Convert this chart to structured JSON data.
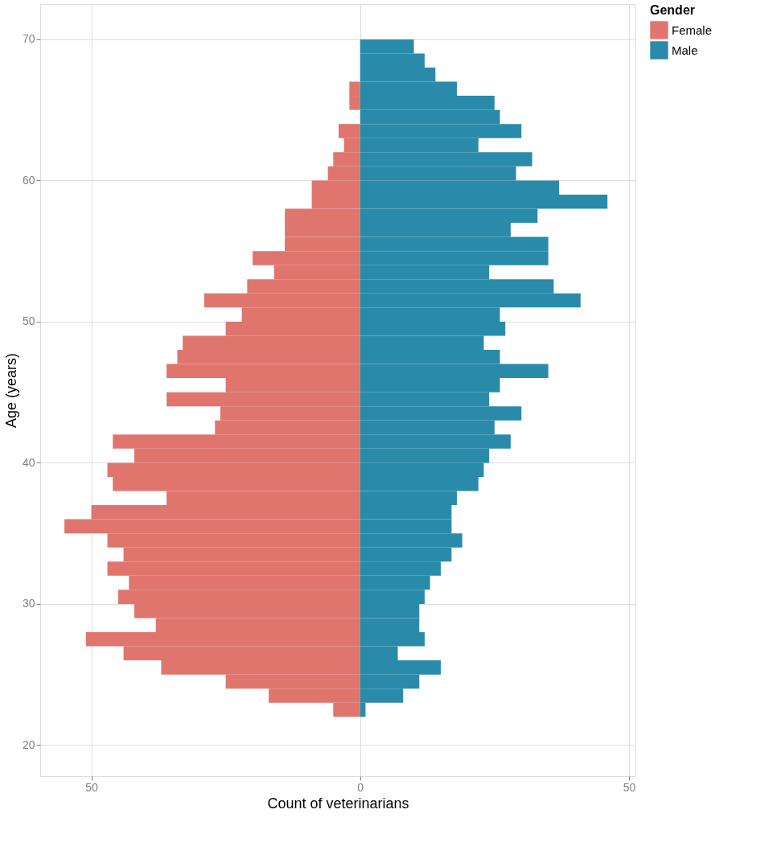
{
  "chart_data": {
    "type": "bar",
    "orientation": "horizontal",
    "stacked": true,
    "xlabel": "Count of veterinarians",
    "ylabel": "Age (years)",
    "legend_title": "Gender",
    "legend": "right",
    "grid": true,
    "x": [
      22.5,
      23.5,
      24.5,
      25.5,
      26.5,
      27.5,
      28.5,
      29.5,
      30.5,
      31.5,
      32.5,
      33.5,
      34.5,
      35.5,
      36.5,
      37.5,
      38.5,
      39.5,
      40.5,
      41.5,
      42.5,
      43.5,
      44.5,
      45.5,
      46.5,
      47.5,
      48.5,
      49.5,
      50.5,
      51.5,
      52.5,
      53.5,
      54.5,
      55.5,
      56.5,
      57.5,
      58.5,
      59.5,
      60.5,
      61.5,
      62.5,
      63.5,
      64.5,
      65.5,
      66.5,
      67.5,
      68.5,
      69.5
    ],
    "series": [
      {
        "name": "Female",
        "color": "#e0756d",
        "values": [
          -5,
          -17,
          -25,
          -37,
          -44,
          -51,
          -38,
          -42,
          -45,
          -43,
          -47,
          -44,
          -47,
          -55,
          -50,
          -36,
          -46,
          -47,
          -42,
          -46,
          -27,
          -26,
          -36,
          -25,
          -36,
          -34,
          -33,
          -25,
          -22,
          -29,
          -21,
          -16,
          -20,
          -14,
          -14,
          -14,
          -9,
          -9,
          -6,
          -5,
          -3,
          -4,
          0,
          -2,
          -2,
          0,
          0,
          0
        ]
      },
      {
        "name": "Male",
        "color": "#2a8aaa",
        "values": [
          1,
          8,
          11,
          15,
          7,
          12,
          11,
          11,
          12,
          13,
          15,
          17,
          19,
          17,
          17,
          18,
          22,
          23,
          24,
          28,
          25,
          30,
          24,
          26,
          35,
          26,
          23,
          27,
          26,
          41,
          36,
          24,
          35,
          35,
          28,
          33,
          46,
          37,
          29,
          32,
          22,
          30,
          26,
          25,
          18,
          14,
          12,
          10
        ]
      }
    ],
    "xlim": [
      -59.5,
      51.2
    ],
    "xticks": [
      {
        "value": -50,
        "label": "50"
      },
      0,
      50
    ],
    "ylim": [
      17.8,
      72.5
    ],
    "yticks": [
      20,
      30,
      40,
      50,
      60,
      70
    ]
  }
}
